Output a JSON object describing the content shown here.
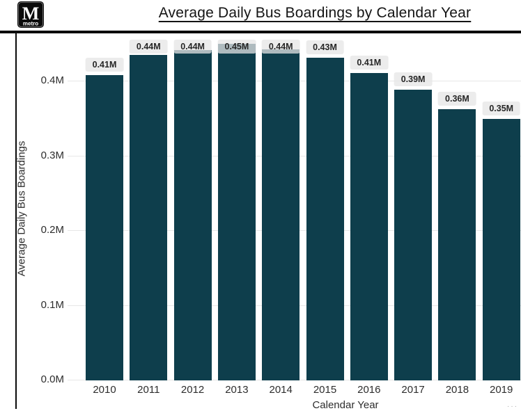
{
  "brand": {
    "logo_letter": "M",
    "logo_sub": "metro"
  },
  "header": {
    "title": "Average Daily Bus Boardings by Calendar Year"
  },
  "chart_data": {
    "type": "bar",
    "title": "Average Daily Bus Boardings by Calendar Year",
    "xlabel": "Calendar Year",
    "ylabel": "Average Daily Bus Boardings",
    "categories": [
      "2010",
      "2011",
      "2012",
      "2013",
      "2014",
      "2015",
      "2016",
      "2017",
      "2018",
      "2019"
    ],
    "values": [
      0.41,
      0.44,
      0.44,
      0.45,
      0.44,
      0.43,
      0.41,
      0.39,
      0.36,
      0.35
    ],
    "values_precise": [
      0.408,
      0.435,
      0.442,
      0.45,
      0.443,
      0.432,
      0.411,
      0.389,
      0.363,
      0.35
    ],
    "bar_labels": [
      "0.41M",
      "0.44M",
      "0.44M",
      "0.45M",
      "0.44M",
      "0.43M",
      "0.41M",
      "0.39M",
      "0.36M",
      "0.35M"
    ],
    "unit": "M",
    "y_ticks": [
      "0.0M",
      "0.1M",
      "0.2M",
      "0.3M",
      "0.4M"
    ],
    "ylim": [
      0,
      0.457
    ],
    "grid": true,
    "legend": "none",
    "bar_color": "#0e3e4c",
    "label_bg": "rgba(229,229,229,0.75)",
    "grid_color": "#e7e7e7"
  },
  "footer": {
    "clipped_text": "···"
  }
}
